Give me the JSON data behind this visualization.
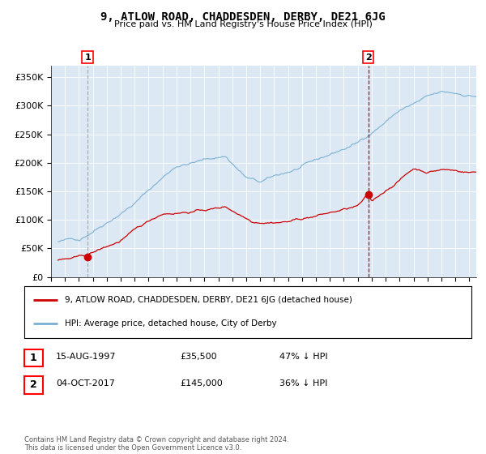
{
  "title": "9, ATLOW ROAD, CHADDESDEN, DERBY, DE21 6JG",
  "subtitle": "Price paid vs. HM Land Registry's House Price Index (HPI)",
  "plot_bg_color": "#dce9f5",
  "line_color_hpi": "#7ab0d4",
  "line_color_property": "#cc0000",
  "marker_color": "#cc0000",
  "vline_color_1": "#aaaaaa",
  "vline_color_2": "#cc0000",
  "ylim": [
    0,
    370000
  ],
  "yticks": [
    0,
    50000,
    100000,
    150000,
    200000,
    250000,
    300000,
    350000
  ],
  "ytick_labels": [
    "£0",
    "£50K",
    "£100K",
    "£150K",
    "£200K",
    "£250K",
    "£300K",
    "£350K"
  ],
  "sale1_date_num": 1997.62,
  "sale1_price": 35500,
  "sale2_date_num": 2017.75,
  "sale2_price": 145000,
  "legend_label_property": "9, ATLOW ROAD, CHADDESDEN, DERBY, DE21 6JG (detached house)",
  "legend_label_hpi": "HPI: Average price, detached house, City of Derby",
  "table_row1": [
    "1",
    "15-AUG-1997",
    "£35,500",
    "47% ↓ HPI"
  ],
  "table_row2": [
    "2",
    "04-OCT-2017",
    "£145,000",
    "36% ↓ HPI"
  ],
  "footer": "Contains HM Land Registry data © Crown copyright and database right 2024.\nThis data is licensed under the Open Government Licence v3.0.",
  "xstart": 1995.5,
  "xend": 2025.5
}
